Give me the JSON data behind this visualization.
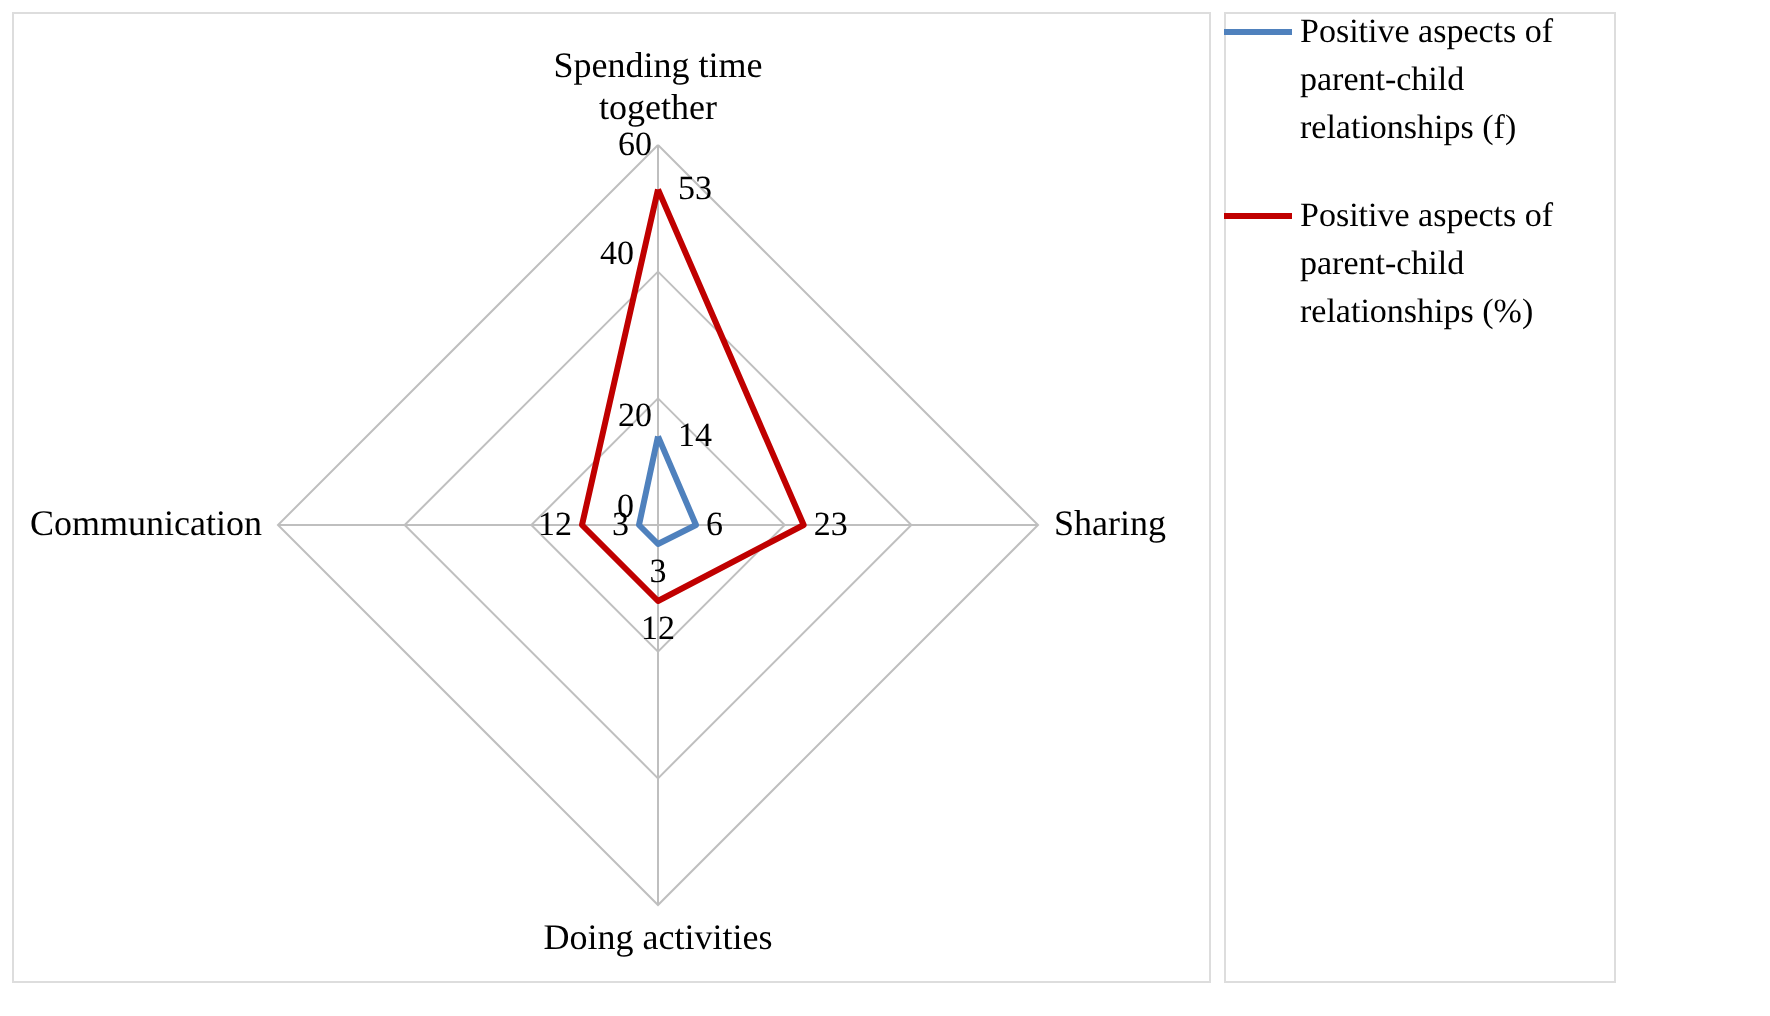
{
  "chart_data": {
    "type": "radar",
    "categories": [
      "Spending time together",
      "Sharing",
      "Doing activities",
      "Communication"
    ],
    "series": [
      {
        "name": "Positive aspects of parent-child relationships (f)",
        "color": "#4f81bd",
        "values": [
          14,
          6,
          3,
          3
        ]
      },
      {
        "name": "Positive aspects of parent-child relationships (%)",
        "color": "#c00000",
        "values": [
          53,
          23,
          12,
          12
        ]
      }
    ],
    "ylim": [
      0,
      60
    ],
    "yticks": [
      0,
      20,
      40,
      60
    ],
    "grid": true,
    "data_labels": true,
    "legend": "top right",
    "marker": "none"
  }
}
